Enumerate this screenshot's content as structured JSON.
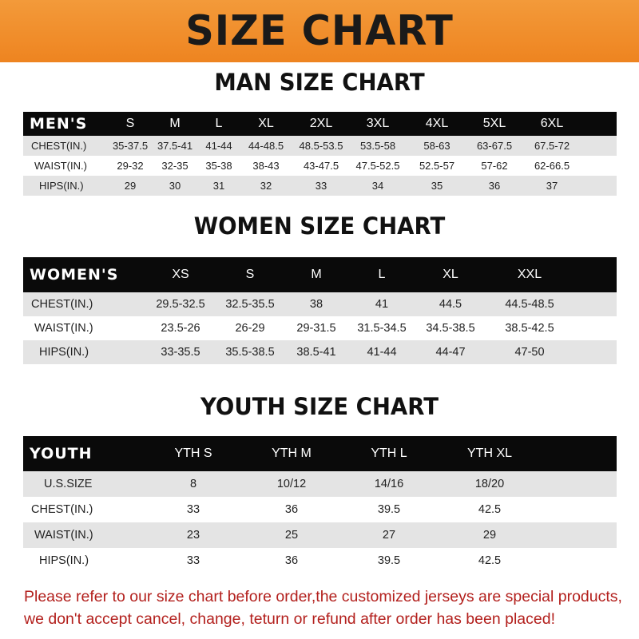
{
  "banner_title": "SIZE CHART",
  "men": {
    "title": "MAN SIZE CHART",
    "header": "MEN'S",
    "sizes": [
      "S",
      "M",
      "L",
      "XL",
      "2XL",
      "3XL",
      "4XL",
      "5XL",
      "6XL"
    ],
    "rows": [
      {
        "label": "CHEST(IN.)",
        "values": [
          "35-37.5",
          "37.5-41",
          "41-44",
          "44-48.5",
          "48.5-53.5",
          "53.5-58",
          "58-63",
          "63-67.5",
          "67.5-72"
        ]
      },
      {
        "label": "WAIST(IN.)",
        "values": [
          "29-32",
          "32-35",
          "35-38",
          "38-43",
          "43-47.5",
          "47.5-52.5",
          "52.5-57",
          "57-62",
          "62-66.5"
        ]
      },
      {
        "label": "HIPS(IN.)",
        "values": [
          "29",
          "30",
          "31",
          "32",
          "33",
          "34",
          "35",
          "36",
          "37"
        ]
      }
    ]
  },
  "women": {
    "title": "WOMEN SIZE CHART",
    "header": "WOMEN'S",
    "sizes": [
      "XS",
      "S",
      "M",
      "L",
      "XL",
      "XXL"
    ],
    "rows": [
      {
        "label": "CHEST(IN.)",
        "values": [
          "29.5-32.5",
          "32.5-35.5",
          "38",
          "41",
          "44.5",
          "44.5-48.5"
        ]
      },
      {
        "label": "WAIST(IN.)",
        "values": [
          "23.5-26",
          "26-29",
          "29-31.5",
          "31.5-34.5",
          "34.5-38.5",
          "38.5-42.5"
        ]
      },
      {
        "label": "HIPS(IN.)",
        "values": [
          "33-35.5",
          "35.5-38.5",
          "38.5-41",
          "41-44",
          "44-47",
          "47-50"
        ]
      }
    ]
  },
  "youth": {
    "title": "YOUTH SIZE CHART",
    "header": "YOUTH",
    "sizes": [
      "YTH S",
      "YTH M",
      "YTH L",
      "YTH XL"
    ],
    "rows": [
      {
        "label": "U.S.SIZE",
        "values": [
          "8",
          "10/12",
          "14/16",
          "18/20"
        ]
      },
      {
        "label": "CHEST(IN.)",
        "values": [
          "33",
          "36",
          "39.5",
          "42.5"
        ]
      },
      {
        "label": "WAIST(IN.)",
        "values": [
          "23",
          "25",
          "27",
          "29"
        ]
      },
      {
        "label": "HIPS(IN.)",
        "values": [
          "33",
          "36",
          "39.5",
          "42.5"
        ]
      }
    ]
  },
  "footer": {
    "line1": "Please refer to our size chart before order,the customized jerseys are special products,",
    "line2": "we don't accept cancel, change, teturn or refund after order has been placed!"
  },
  "colors": {
    "banner": "#f08a24",
    "header_row": "#0a0a0a",
    "gray_row": "#e4e4e4",
    "footer_text": "#b3201d"
  }
}
